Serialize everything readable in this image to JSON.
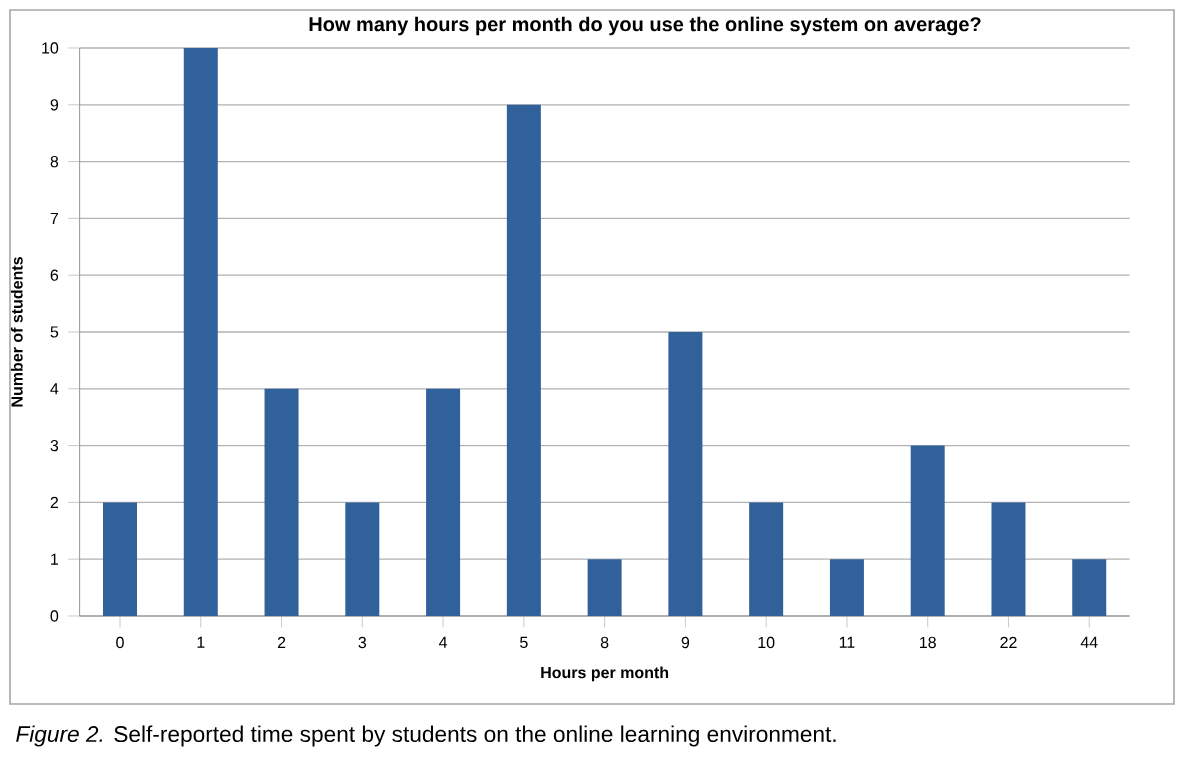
{
  "chart_data": {
    "type": "bar",
    "title": "How many hours per month do you use the online system on average?",
    "xlabel": "Hours per month",
    "ylabel": "Number of students",
    "categories": [
      "0",
      "1",
      "2",
      "3",
      "4",
      "5",
      "8",
      "9",
      "10",
      "11",
      "18",
      "22",
      "44"
    ],
    "values": [
      2,
      10,
      4,
      2,
      4,
      9,
      1,
      5,
      2,
      1,
      3,
      2,
      1
    ],
    "color": "#30619b",
    "ylim": [
      0,
      10
    ],
    "yticks": [
      0,
      1,
      2,
      3,
      4,
      5,
      6,
      7,
      8,
      9,
      10
    ],
    "grid": "y",
    "annotations": [
      "*Figure 2.* Self-reported time spent by students on the online learning environment."
    ]
  }
}
